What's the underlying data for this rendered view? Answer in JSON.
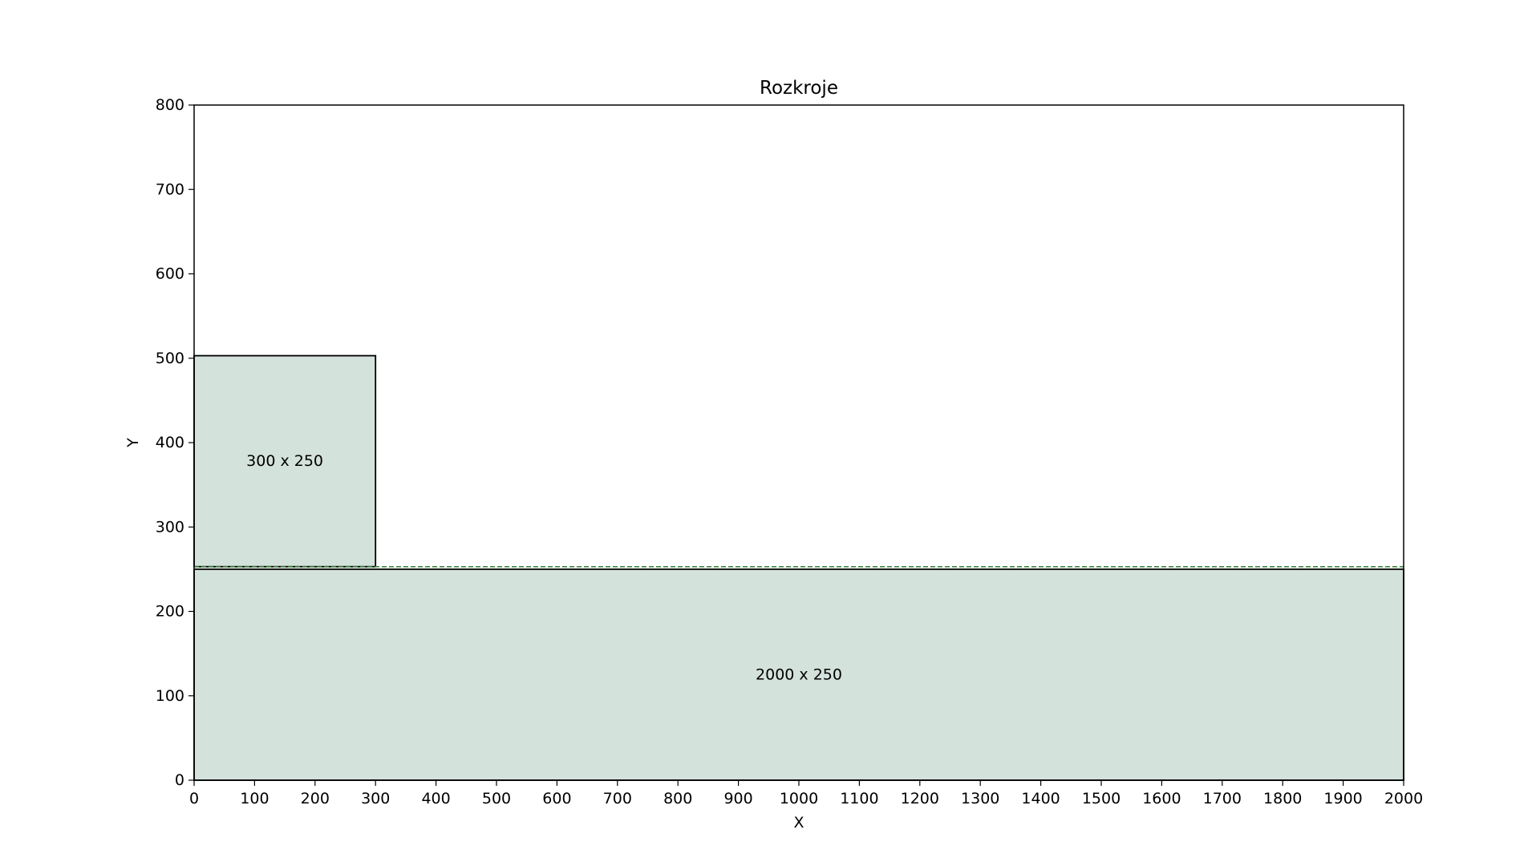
{
  "chart_data": {
    "type": "rectangles",
    "title": "Rozkroje",
    "xlabel": "X",
    "ylabel": "Y",
    "xlim": [
      0,
      2000
    ],
    "ylim": [
      0,
      800
    ],
    "xticks": [
      0,
      100,
      200,
      300,
      400,
      500,
      600,
      700,
      800,
      900,
      1000,
      1100,
      1200,
      1300,
      1400,
      1500,
      1600,
      1700,
      1800,
      1900,
      2000
    ],
    "yticks": [
      0,
      100,
      200,
      300,
      400,
      500,
      600,
      700,
      800
    ],
    "grid": false,
    "fill_color": "#d4e2dc",
    "edge_color": "#000000",
    "cut_line_color": "#2e7d32",
    "rectangles": [
      {
        "label": "2000 x 250",
        "x": 0,
        "y": 0,
        "width": 2000,
        "height": 250
      },
      {
        "label": "300 x 250",
        "x": 0,
        "y": 253,
        "width": 300,
        "height": 250
      }
    ],
    "cut_lines": [
      {
        "y": 253,
        "x_from": 0,
        "x_to": 2000,
        "style": "dashed"
      }
    ]
  }
}
